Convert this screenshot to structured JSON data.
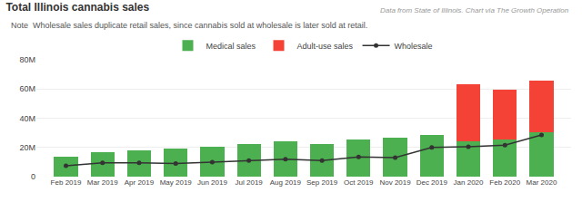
{
  "chart_data": {
    "type": "bar",
    "title": "Total Illinois cannabis sales",
    "annotations": [
      "Note  Wholesale sales duplicate retail sales, since cannabis sold at wholesale is later sold at retail.",
      "Data from State of Illinois. Chart via The Growth Operation"
    ],
    "categories": [
      "Feb 2019",
      "Mar 2019",
      "Apr 2019",
      "May 2019",
      "Jun 2019",
      "Jul 2019",
      "Aug 2019",
      "Sep 2019",
      "Oct 2019",
      "Nov 2019",
      "Dec 2019",
      "Jan 2020",
      "Feb 2020",
      "Mar 2020"
    ],
    "series": [
      {
        "name": "Medical sales",
        "type": "bar",
        "color": "#4caf50",
        "values": [
          13.5,
          17.0,
          18.0,
          19.5,
          20.5,
          22.5,
          24.0,
          22.5,
          25.5,
          26.5,
          28.5,
          24.0,
          25.5,
          30.5
        ]
      },
      {
        "name": "Adult-use sales",
        "type": "bar",
        "color": "#f44336",
        "values": [
          0,
          0,
          0,
          0,
          0,
          0,
          0,
          0,
          0,
          0,
          0,
          39.0,
          34.0,
          35.5
        ]
      },
      {
        "name": "Wholesale",
        "type": "line",
        "color": "#333333",
        "marker": "circle",
        "values": [
          7.5,
          9.5,
          9.5,
          9.0,
          10.0,
          11.0,
          12.0,
          11.0,
          13.5,
          13.0,
          20.0,
          20.5,
          21.5,
          28.5
        ]
      }
    ],
    "stacked": true,
    "ylim": [
      0,
      80
    ],
    "yticks": [
      0,
      {
        "value": 20,
        "label": "20M"
      },
      {
        "value": 40,
        "label": "40M"
      },
      {
        "value": 60,
        "label": "60M"
      },
      {
        "value": 80,
        "label": "80M"
      }
    ],
    "grid": true,
    "legend": "top"
  }
}
